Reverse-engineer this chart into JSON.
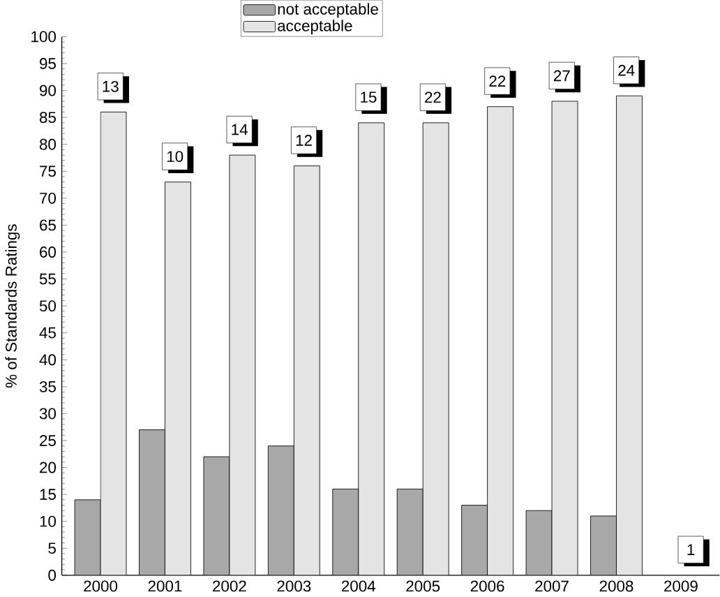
{
  "chart_data": {
    "type": "bar",
    "ylabel": "% of Standards Ratings",
    "categories": [
      "2000",
      "2001",
      "2002",
      "2003",
      "2004",
      "2005",
      "2006",
      "2007",
      "2008",
      "2009"
    ],
    "series": [
      {
        "name": "not acceptable",
        "color": "#a8a8a8",
        "values": [
          14,
          27,
          22,
          24,
          16,
          16,
          13,
          12,
          11,
          null
        ]
      },
      {
        "name": "acceptable",
        "color": "#e4e4e4",
        "values": [
          86,
          73,
          78,
          76,
          84,
          84,
          87,
          88,
          89,
          null
        ]
      }
    ],
    "annotations": [
      {
        "text": "13",
        "x": "2000",
        "y": 86
      },
      {
        "text": "10",
        "x": "2001",
        "y": 73
      },
      {
        "text": "14",
        "x": "2002",
        "y": 78
      },
      {
        "text": "12",
        "x": "2003",
        "y": 76
      },
      {
        "text": "15",
        "x": "2004",
        "y": 84
      },
      {
        "text": "22",
        "x": "2005",
        "y": 84
      },
      {
        "text": "22",
        "x": "2006",
        "y": 87
      },
      {
        "text": "27",
        "x": "2007",
        "y": 88
      },
      {
        "text": "24",
        "x": "2008",
        "y": 89
      },
      "1"
    ],
    "ylim": [
      0,
      100
    ],
    "yticks": [
      0,
      5,
      10,
      15,
      20,
      25,
      30,
      35,
      40,
      45,
      50,
      55,
      60,
      65,
      70,
      75,
      80,
      85,
      90,
      95,
      100
    ],
    "legend": "top",
    "grid": false
  }
}
